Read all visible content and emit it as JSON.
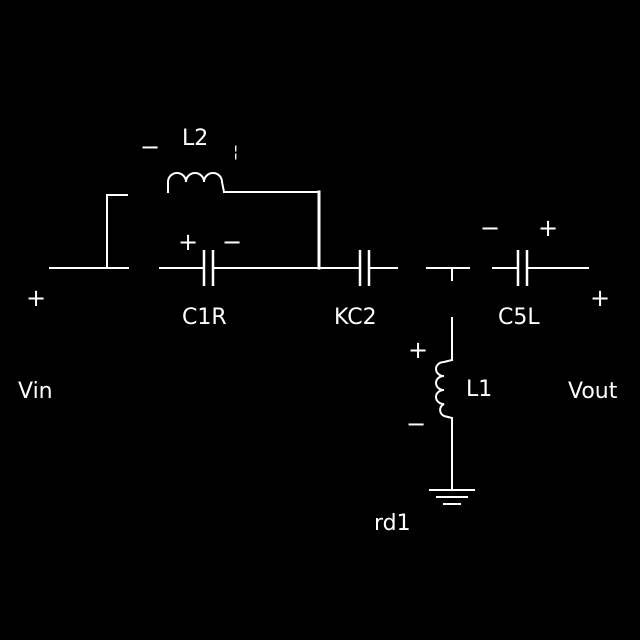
{
  "labels": {
    "vin": "Vin",
    "vout": "Vout",
    "l2": "L2",
    "l1": "L1",
    "c1r": "C1R",
    "kc2": "KC2",
    "c5l": "C5L",
    "gnd": "rd1"
  },
  "signs": {
    "vin_plus": "+",
    "vout_plus": "+",
    "c1_plus": "+",
    "c1_minus": "−",
    "l2_minus": "−",
    "l2_plus": "¦",
    "c5_minus": "−",
    "c5_plus": "+",
    "l1_plus": "+",
    "l1_minus": "−"
  },
  "colors": {
    "background": "#000000",
    "ink": "#ffffff"
  }
}
